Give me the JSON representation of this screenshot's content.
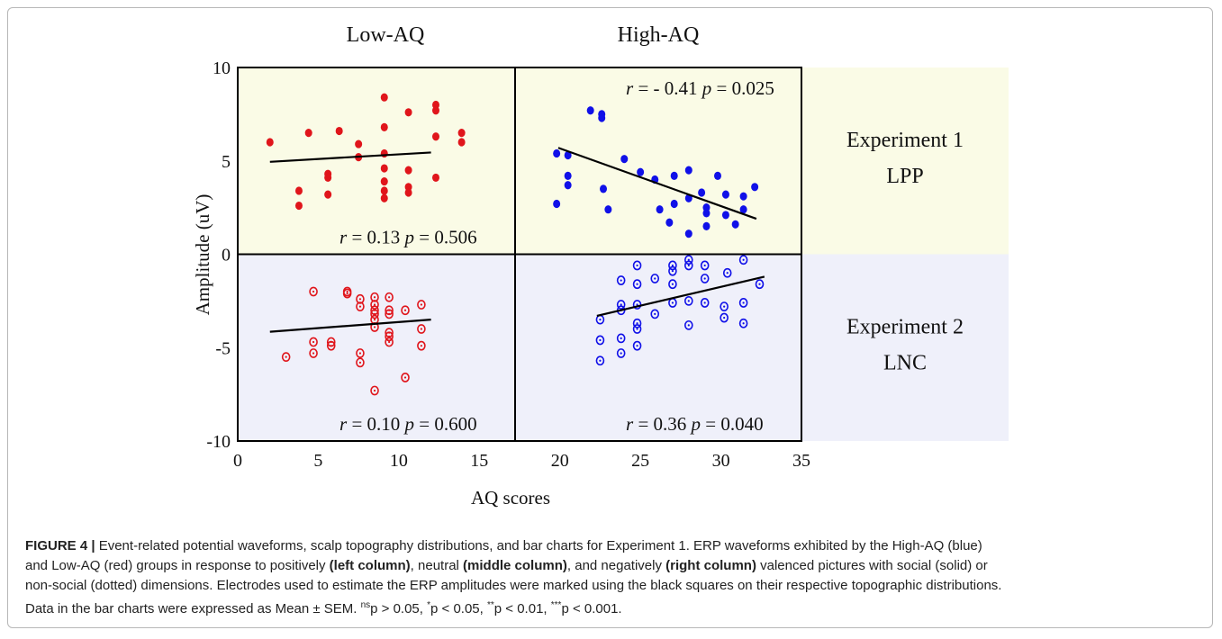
{
  "chart_data": {
    "type": "scatter",
    "xlabel": "AQ scores",
    "ylabel": "Amplitude (uV)",
    "xlim": [
      0,
      35
    ],
    "ylim": [
      -10,
      10
    ],
    "xticks": [
      "0",
      "5",
      "10",
      "15",
      "20",
      "25",
      "30",
      "35"
    ],
    "yticks": [
      "10",
      "5",
      "0",
      "-5",
      "-10"
    ],
    "column_titles": [
      "Low-AQ",
      "High-AQ"
    ],
    "row_labels": [
      {
        "line1": "Experiment 1",
        "line2": "LPP"
      },
      {
        "line1": "Experiment 2",
        "line2": "LNC"
      }
    ],
    "colors": {
      "low_aq": "#e0151b",
      "high_aq": "#1010e8",
      "panel_top": "#fafbe6",
      "panel_bottom": "#eff0fa",
      "fit_line": "#000000"
    },
    "panels": [
      {
        "experiment": "Experiment 1 LPP",
        "group": "Low-AQ",
        "marker": "filled",
        "stats": {
          "r_label": "r =",
          "r": "0.13",
          "p_label": "p =",
          "p": "0.506"
        },
        "fit": {
          "x": [
            2,
            12
          ],
          "y": [
            4.95,
            5.45
          ]
        },
        "points": [
          [
            2,
            6.0
          ],
          [
            3.8,
            3.4
          ],
          [
            3.8,
            2.6
          ],
          [
            4.4,
            6.5
          ],
          [
            5.6,
            4.3
          ],
          [
            5.6,
            4.1
          ],
          [
            5.6,
            3.2
          ],
          [
            6.3,
            6.6
          ],
          [
            7.5,
            5.9
          ],
          [
            7.5,
            5.2
          ],
          [
            9.1,
            8.4
          ],
          [
            9.1,
            6.8
          ],
          [
            9.1,
            5.4
          ],
          [
            9.1,
            4.6
          ],
          [
            9.1,
            3.9
          ],
          [
            9.1,
            3.4
          ],
          [
            9.1,
            3.0
          ],
          [
            10.6,
            7.6
          ],
          [
            10.6,
            4.5
          ],
          [
            10.6,
            3.6
          ],
          [
            10.6,
            3.3
          ],
          [
            12.3,
            8.0
          ],
          [
            12.3,
            7.7
          ],
          [
            12.3,
            6.3
          ],
          [
            12.3,
            4.1
          ],
          [
            13.9,
            6.5
          ],
          [
            13.9,
            6.0
          ]
        ]
      },
      {
        "experiment": "Experiment 1 LPP",
        "group": "High-AQ",
        "marker": "filled",
        "stats": {
          "r_label": "r =",
          "r": "- 0.41",
          "p_label": "p =",
          "p": "0.025"
        },
        "fit": {
          "x": [
            19.9,
            32.2
          ],
          "y": [
            5.7,
            1.9
          ]
        },
        "points": [
          [
            19.8,
            5.4
          ],
          [
            19.8,
            2.7
          ],
          [
            20.5,
            5.3
          ],
          [
            20.5,
            4.2
          ],
          [
            20.5,
            3.7
          ],
          [
            21.9,
            7.7
          ],
          [
            22.6,
            7.5
          ],
          [
            22.6,
            7.3
          ],
          [
            22.7,
            3.5
          ],
          [
            23.0,
            2.4
          ],
          [
            24.0,
            5.1
          ],
          [
            25.0,
            4.4
          ],
          [
            25.9,
            4.0
          ],
          [
            26.2,
            2.4
          ],
          [
            26.8,
            1.7
          ],
          [
            27.1,
            4.2
          ],
          [
            27.1,
            2.7
          ],
          [
            28.0,
            4.5
          ],
          [
            28.0,
            3.0
          ],
          [
            28.0,
            1.1
          ],
          [
            28.8,
            3.3
          ],
          [
            29.1,
            2.5
          ],
          [
            29.1,
            2.2
          ],
          [
            29.1,
            1.5
          ],
          [
            29.8,
            4.2
          ],
          [
            30.3,
            3.2
          ],
          [
            30.3,
            2.1
          ],
          [
            30.9,
            1.6
          ],
          [
            31.4,
            3.1
          ],
          [
            31.4,
            2.4
          ],
          [
            32.1,
            3.6
          ]
        ]
      },
      {
        "experiment": "Experiment 2 LNC",
        "group": "Low-AQ",
        "marker": "open",
        "stats": {
          "r_label": "r =",
          "r": "0.10",
          "p_label": "p =",
          "p": "0.600"
        },
        "fit": {
          "x": [
            2,
            12
          ],
          "y": [
            -4.15,
            -3.5
          ]
        },
        "points": [
          [
            3.0,
            -5.5
          ],
          [
            4.7,
            -2.0
          ],
          [
            4.7,
            -4.7
          ],
          [
            4.7,
            -5.3
          ],
          [
            5.8,
            -4.7
          ],
          [
            5.8,
            -4.9
          ],
          [
            6.8,
            -2.0
          ],
          [
            6.8,
            -2.1
          ],
          [
            7.6,
            -2.4
          ],
          [
            7.6,
            -2.8
          ],
          [
            7.6,
            -5.3
          ],
          [
            7.6,
            -5.8
          ],
          [
            8.5,
            -2.3
          ],
          [
            8.5,
            -2.7
          ],
          [
            8.5,
            -3.0
          ],
          [
            8.5,
            -3.2
          ],
          [
            8.5,
            -3.5
          ],
          [
            8.5,
            -3.9
          ],
          [
            8.5,
            -7.3
          ],
          [
            9.4,
            -2.3
          ],
          [
            9.4,
            -3.0
          ],
          [
            9.4,
            -3.2
          ],
          [
            9.4,
            -4.2
          ],
          [
            9.4,
            -4.4
          ],
          [
            9.4,
            -4.7
          ],
          [
            10.4,
            -3.0
          ],
          [
            10.4,
            -6.6
          ],
          [
            11.4,
            -2.7
          ],
          [
            11.4,
            -4.0
          ],
          [
            11.4,
            -4.9
          ]
        ]
      },
      {
        "experiment": "Experiment 2 LNC",
        "group": "High-AQ",
        "marker": "open",
        "stats": {
          "r_label": "r =",
          "r": "0.36",
          "p_label": "p =",
          "p": "0.040"
        },
        "fit": {
          "x": [
            22.3,
            32.7
          ],
          "y": [
            -3.3,
            -1.2
          ]
        },
        "points": [
          [
            22.5,
            -3.5
          ],
          [
            22.5,
            -4.6
          ],
          [
            22.5,
            -5.7
          ],
          [
            23.8,
            -1.4
          ],
          [
            23.8,
            -2.7
          ],
          [
            23.8,
            -3.0
          ],
          [
            23.8,
            -4.5
          ],
          [
            23.8,
            -5.3
          ],
          [
            24.8,
            -0.6
          ],
          [
            24.8,
            -1.6
          ],
          [
            24.8,
            -2.7
          ],
          [
            24.8,
            -3.7
          ],
          [
            24.8,
            -4.0
          ],
          [
            24.8,
            -4.9
          ],
          [
            25.9,
            -1.3
          ],
          [
            25.9,
            -3.2
          ],
          [
            27.0,
            -0.6
          ],
          [
            27.0,
            -0.9
          ],
          [
            27.0,
            -1.6
          ],
          [
            27.0,
            -2.6
          ],
          [
            28.0,
            -0.3
          ],
          [
            28.0,
            -0.6
          ],
          [
            28.0,
            -2.5
          ],
          [
            28.0,
            -3.8
          ],
          [
            29.0,
            -0.6
          ],
          [
            29.0,
            -1.3
          ],
          [
            29.0,
            -2.6
          ],
          [
            30.2,
            -2.8
          ],
          [
            30.2,
            -3.4
          ],
          [
            30.4,
            -1.0
          ],
          [
            31.4,
            -0.3
          ],
          [
            31.4,
            -2.6
          ],
          [
            31.4,
            -3.7
          ],
          [
            32.4,
            -1.6
          ]
        ]
      }
    ]
  },
  "caption": {
    "label": "FIGURE 4 |",
    "lines": [
      [
        {
          "t": " Event-related potential waveforms, scalp topography distributions, and bar charts for Experiment 1. ERP waveforms exhibited by the High-AQ (blue)",
          "b": false
        }
      ],
      [
        {
          "t": "and Low-AQ (red) groups in response to positively ",
          "b": false
        },
        {
          "t": "(left column)",
          "b": true
        },
        {
          "t": ", neutral ",
          "b": false
        },
        {
          "t": "(middle column)",
          "b": true
        },
        {
          "t": ", and negatively ",
          "b": false
        },
        {
          "t": "(right column)",
          "b": true
        },
        {
          "t": " valenced pictures with social (solid) or",
          "b": false
        }
      ],
      [
        {
          "t": "non-social (dotted) dimensions. Electrodes used to estimate the ERP amplitudes were marked using the black squares on their respective topographic distributions.",
          "b": false
        }
      ],
      [
        {
          "t": "Data in the bar charts were expressed as Mean ± SEM. ",
          "b": false
        },
        {
          "t": "ns",
          "b": false,
          "sup": true
        },
        {
          "t": "p > 0.05, ",
          "b": false
        },
        {
          "t": "*",
          "b": false,
          "sup": true
        },
        {
          "t": "p < 0.05, ",
          "b": false
        },
        {
          "t": "**",
          "b": false,
          "sup": true
        },
        {
          "t": "p < 0.01, ",
          "b": false
        },
        {
          "t": "***",
          "b": false,
          "sup": true
        },
        {
          "t": "p < 0.001.",
          "b": false
        }
      ]
    ]
  }
}
